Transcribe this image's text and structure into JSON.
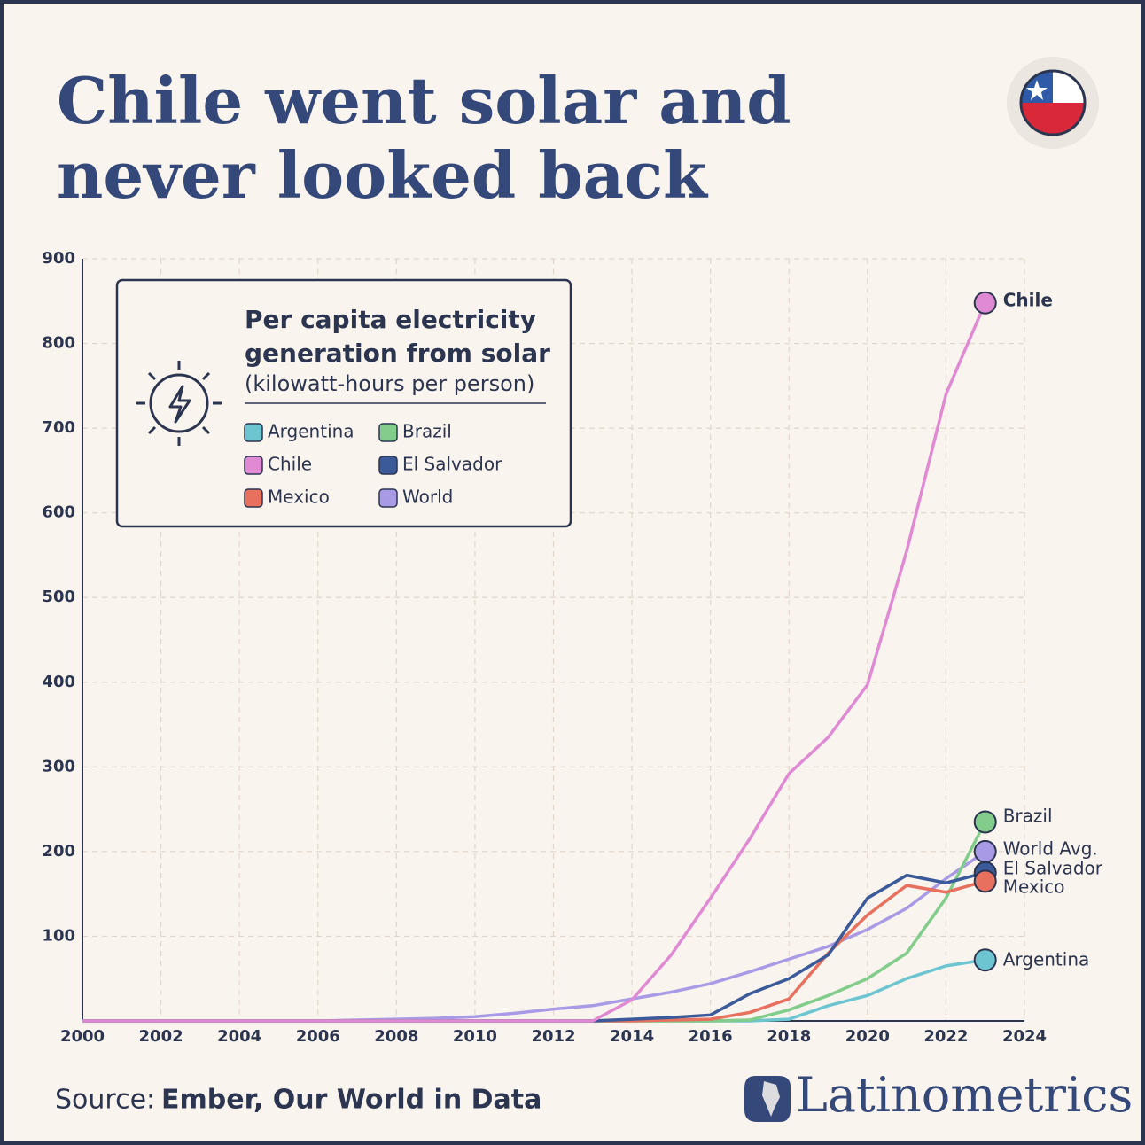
{
  "chart_data": {
    "type": "line",
    "title": "Chile went solar and never looked back",
    "legend_title": "Per capita electricity generation from solar",
    "legend_subtitle": "(kilowatt-hours per person)",
    "source_label": "Source:",
    "source": "Ember, Our World in Data",
    "brand": "Latinometrics",
    "x": [
      2000,
      2001,
      2002,
      2003,
      2004,
      2005,
      2006,
      2007,
      2008,
      2009,
      2010,
      2011,
      2012,
      2013,
      2014,
      2015,
      2016,
      2017,
      2018,
      2019,
      2020,
      2021,
      2022,
      2023
    ],
    "xlim": [
      2000,
      2024
    ],
    "xticks": [
      2000,
      2002,
      2004,
      2006,
      2008,
      2010,
      2012,
      2014,
      2016,
      2018,
      2020,
      2022,
      2024
    ],
    "ylim": [
      0,
      900
    ],
    "yticks": [
      100,
      200,
      300,
      400,
      500,
      600,
      700,
      800,
      900
    ],
    "grid": true,
    "series": [
      {
        "name": "Argentina",
        "end_label": "Argentina",
        "color": "#6cc5d0",
        "values": [
          0,
          0,
          0,
          0,
          0,
          0,
          0,
          0,
          0,
          0,
          0,
          0,
          0,
          0,
          0,
          0,
          0,
          0,
          2,
          18,
          30,
          50,
          65,
          72
        ]
      },
      {
        "name": "Brazil",
        "end_label": "Brazil",
        "color": "#82cc8c",
        "values": [
          0,
          0,
          0,
          0,
          0,
          0,
          0,
          0,
          0,
          0,
          0,
          0,
          0,
          0,
          0,
          0,
          0,
          1,
          13,
          30,
          50,
          80,
          145,
          235
        ]
      },
      {
        "name": "Chile",
        "end_label": "Chile",
        "color": "#e08ad4",
        "values": [
          0,
          0,
          0,
          0,
          0,
          0,
          0,
          0,
          0,
          0,
          0,
          0,
          0,
          0,
          25,
          78,
          145,
          215,
          292,
          335,
          397,
          555,
          740,
          848
        ]
      },
      {
        "name": "El Salvador",
        "end_label": "El Salvador",
        "color": "#3a5a9a",
        "values": [
          0,
          0,
          0,
          0,
          0,
          0,
          0,
          0,
          0,
          0,
          0,
          0,
          0,
          0,
          2,
          4,
          7,
          32,
          50,
          78,
          145,
          172,
          163,
          175
        ]
      },
      {
        "name": "Mexico",
        "end_label": "Mexico",
        "color": "#e8705e",
        "values": [
          0,
          0,
          0,
          0,
          0,
          0,
          0,
          0,
          0,
          0,
          0,
          0,
          0,
          0,
          0,
          1,
          2,
          10,
          26,
          80,
          125,
          160,
          152,
          165
        ]
      },
      {
        "name": "World",
        "end_label": "World Avg.",
        "color": "#a99ae6",
        "values": [
          0,
          0,
          0,
          0,
          0,
          0,
          0,
          1,
          2,
          3,
          5,
          9,
          14,
          18,
          26,
          34,
          44,
          58,
          73,
          88,
          108,
          133,
          168,
          200
        ]
      }
    ]
  }
}
